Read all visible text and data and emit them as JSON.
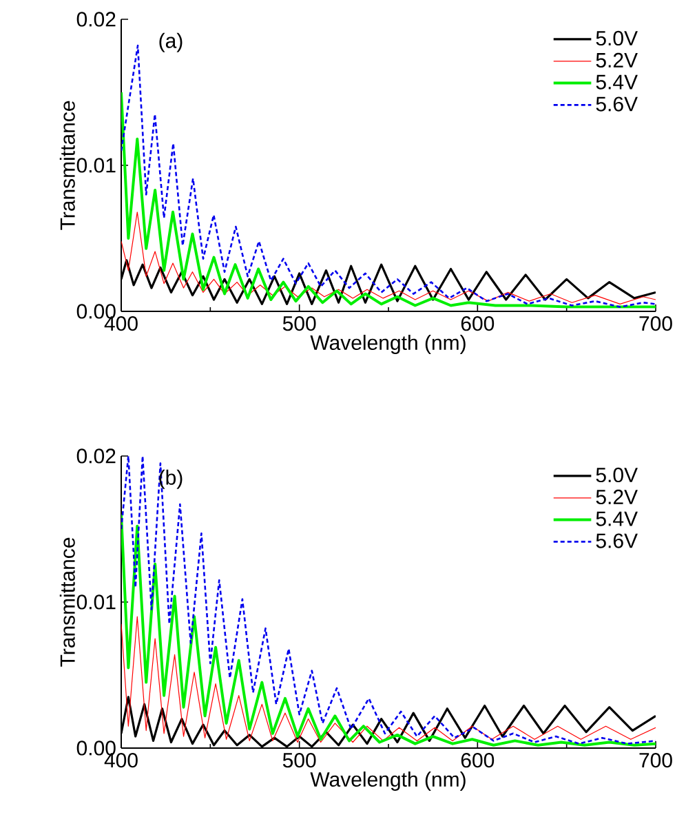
{
  "chart_data": [
    {
      "type": "line",
      "annotations": [
        "(a)"
      ],
      "xlabel": "Wavelength (nm)",
      "ylabel": "Transmittance",
      "xlim": [
        400,
        700
      ],
      "ylim": [
        0,
        0.02
      ],
      "xticks": [
        400,
        500,
        600,
        700
      ],
      "yticks": [
        {
          "value": 0,
          "label": "0.00"
        },
        {
          "value": 0.01,
          "label": "0.01"
        },
        {
          "value": 0.02,
          "label": "0.02"
        }
      ],
      "legend": "top right",
      "series": [
        {
          "name": "5.0V",
          "color": "#000000",
          "line_style": "solid",
          "x": [
            400,
            403,
            407,
            412,
            417,
            422,
            428,
            434,
            440,
            446,
            452,
            458,
            465,
            472,
            479,
            486,
            493,
            500,
            507,
            515,
            522,
            529,
            537,
            546,
            555,
            565,
            575,
            585,
            595,
            605,
            616,
            627,
            638,
            650,
            662,
            674,
            688,
            700
          ],
          "values": [
            0.0022,
            0.0035,
            0.0018,
            0.0032,
            0.0016,
            0.003,
            0.0013,
            0.0027,
            0.0011,
            0.0024,
            0.0008,
            0.0022,
            0.0006,
            0.0022,
            0.0005,
            0.0024,
            0.0005,
            0.0026,
            0.0005,
            0.0028,
            0.0006,
            0.0031,
            0.0006,
            0.0032,
            0.0007,
            0.0031,
            0.0008,
            0.0029,
            0.0008,
            0.0027,
            0.0008,
            0.0025,
            0.0008,
            0.0022,
            0.0009,
            0.002,
            0.0009,
            0.0013
          ]
        },
        {
          "name": "5.2V",
          "color": "#ff0000",
          "line_style": "solid",
          "x": [
            400,
            404,
            409,
            414,
            419,
            424,
            429,
            435,
            440,
            446,
            452,
            458,
            465,
            471,
            478,
            485,
            492,
            499,
            507,
            514,
            522,
            530,
            538,
            547,
            556,
            565,
            575,
            585,
            595,
            606,
            617,
            629,
            641,
            653,
            666,
            680,
            693,
            700
          ],
          "values": [
            0.0048,
            0.0028,
            0.0068,
            0.0024,
            0.0041,
            0.0019,
            0.0033,
            0.0016,
            0.0027,
            0.0013,
            0.0022,
            0.0012,
            0.002,
            0.0011,
            0.0018,
            0.0011,
            0.0017,
            0.001,
            0.0016,
            0.001,
            0.0015,
            0.0009,
            0.0015,
            0.0009,
            0.0014,
            0.0008,
            0.0014,
            0.0008,
            0.0014,
            0.0007,
            0.0013,
            0.0007,
            0.0012,
            0.0006,
            0.0011,
            0.0005,
            0.001,
            0.0008
          ]
        },
        {
          "name": "5.4V",
          "color": "#00ee00",
          "line_style": "solid",
          "x": [
            400,
            404,
            409,
            414,
            419,
            424,
            429,
            435,
            440,
            446,
            452,
            458,
            464,
            471,
            477,
            484,
            491,
            498,
            505,
            513,
            521,
            529,
            537,
            546,
            555,
            565,
            575,
            585,
            595,
            610,
            630,
            650,
            670,
            700
          ],
          "values": [
            0.015,
            0.005,
            0.0118,
            0.0043,
            0.0083,
            0.0028,
            0.0068,
            0.0022,
            0.0053,
            0.0015,
            0.0037,
            0.0012,
            0.0032,
            0.0009,
            0.0029,
            0.0008,
            0.002,
            0.0007,
            0.0017,
            0.0006,
            0.0014,
            0.0005,
            0.0012,
            0.0005,
            0.001,
            0.0004,
            0.0009,
            0.0004,
            0.0006,
            0.0004,
            0.0004,
            0.0003,
            0.0003,
            0.0003
          ]
        },
        {
          "name": "5.6V",
          "color": "#0000ee",
          "line_style": "dashed",
          "x": [
            400,
            409.3,
            414,
            418.9,
            424,
            429.2,
            434.5,
            440.3,
            446,
            451.9,
            458,
            464.3,
            471,
            477.3,
            484,
            491,
            498,
            505,
            512,
            520,
            528,
            537,
            546,
            555,
            564,
            574,
            584,
            594,
            605,
            617,
            628,
            640,
            653,
            666,
            680,
            693,
            700
          ],
          "values": [
            0.011,
            0.0182,
            0.008,
            0.0135,
            0.0064,
            0.0115,
            0.0045,
            0.0091,
            0.0036,
            0.0066,
            0.0027,
            0.0058,
            0.0024,
            0.0048,
            0.0021,
            0.0036,
            0.0019,
            0.0033,
            0.0017,
            0.0028,
            0.0016,
            0.0026,
            0.0013,
            0.0022,
            0.0012,
            0.002,
            0.0009,
            0.0016,
            0.0007,
            0.0012,
            0.0005,
            0.0009,
            0.0004,
            0.0007,
            0.0003,
            0.0006,
            0.0005
          ]
        }
      ]
    },
    {
      "type": "line",
      "annotations": [
        "(b)"
      ],
      "xlabel": "Wavelength (nm)",
      "ylabel": "Transmittance",
      "xlim": [
        400,
        700
      ],
      "ylim": [
        0,
        0.02
      ],
      "xticks": [
        400,
        500,
        600,
        700
      ],
      "yticks": [
        {
          "value": 0,
          "label": "0.00"
        },
        {
          "value": 0.01,
          "label": "0.01"
        },
        {
          "value": 0.02,
          "label": "0.02"
        }
      ],
      "legend": "top right",
      "series": [
        {
          "name": "5.0V",
          "color": "#000000",
          "line_style": "solid",
          "x": [
            400,
            404,
            408,
            413,
            418,
            423,
            428,
            434,
            440,
            446,
            452,
            458,
            465,
            472,
            479,
            486,
            493,
            500,
            507,
            515,
            522,
            530,
            538,
            546,
            555,
            564,
            573,
            583,
            593,
            604,
            614,
            626,
            637,
            649,
            661,
            674,
            687,
            700
          ],
          "values": [
            0.001,
            0.0035,
            0.0008,
            0.003,
            0.0005,
            0.0027,
            0.0004,
            0.002,
            0.0003,
            0.0016,
            0.0002,
            0.0012,
            0.0002,
            0.0009,
            0.0001,
            0.0007,
            0.0001,
            0.0008,
            0.0001,
            0.0011,
            0.0002,
            0.0016,
            0.0003,
            0.002,
            0.0004,
            0.0024,
            0.0005,
            0.0027,
            0.0007,
            0.0029,
            0.0008,
            0.0029,
            0.001,
            0.0029,
            0.0011,
            0.0028,
            0.0012,
            0.0022
          ]
        },
        {
          "name": "5.2V",
          "color": "#ff0000",
          "line_style": "solid",
          "x": [
            400,
            404,
            409,
            414,
            419,
            424,
            430,
            435,
            441,
            447,
            453,
            459,
            466,
            472,
            479,
            485,
            492,
            499,
            505,
            512,
            520,
            530,
            538,
            547,
            556,
            566,
            576,
            586,
            597,
            608,
            620,
            632,
            645,
            658,
            672,
            686,
            700
          ],
          "values": [
            0.0085,
            0.0015,
            0.009,
            0.0012,
            0.0075,
            0.001,
            0.0064,
            0.0008,
            0.0052,
            0.0007,
            0.0044,
            0.0006,
            0.0036,
            0.0005,
            0.003,
            0.0005,
            0.0024,
            0.0004,
            0.002,
            0.0004,
            0.0017,
            0.0004,
            0.0015,
            0.0005,
            0.0014,
            0.0005,
            0.0014,
            0.0005,
            0.0015,
            0.0006,
            0.0015,
            0.0006,
            0.0015,
            0.0006,
            0.0015,
            0.0006,
            0.0014
          ]
        },
        {
          "name": "5.4V",
          "color": "#00ee00",
          "line_style": "solid",
          "x": [
            400,
            404,
            409,
            414,
            419,
            424,
            430,
            435,
            441,
            447,
            453,
            459,
            466,
            472,
            479,
            485,
            492,
            499,
            505,
            512,
            520,
            528,
            536,
            545,
            555,
            565,
            575,
            586,
            597,
            609,
            621,
            634,
            647,
            660,
            674,
            688,
            700
          ],
          "values": [
            0.016,
            0.0055,
            0.0152,
            0.0045,
            0.0126,
            0.0036,
            0.0104,
            0.0028,
            0.009,
            0.0022,
            0.0069,
            0.0017,
            0.006,
            0.0013,
            0.0045,
            0.001,
            0.0034,
            0.0008,
            0.0027,
            0.0006,
            0.0022,
            0.0005,
            0.0015,
            0.0004,
            0.0009,
            0.0003,
            0.0008,
            0.0003,
            0.0006,
            0.0002,
            0.0005,
            0.0002,
            0.0004,
            0.0002,
            0.0004,
            0.0002,
            0.0003
          ]
        },
        {
          "name": "5.6V",
          "color": "#0000ee",
          "line_style": "dashed",
          "x": [
            400,
            404,
            408,
            412,
            417,
            422,
            427,
            433,
            439,
            445,
            450,
            455,
            461,
            468,
            474,
            481,
            487,
            494,
            500,
            507,
            513,
            521,
            529,
            539,
            548,
            557,
            566,
            576,
            587,
            598,
            609,
            620,
            632,
            644,
            657,
            670,
            684,
            700
          ],
          "values": [
            0.015,
            0.02,
            0.011,
            0.02,
            0.0095,
            0.0195,
            0.0085,
            0.0167,
            0.0072,
            0.0147,
            0.0058,
            0.0115,
            0.0048,
            0.0102,
            0.0038,
            0.0082,
            0.003,
            0.0068,
            0.0023,
            0.0053,
            0.0017,
            0.0041,
            0.0013,
            0.0034,
            0.001,
            0.0025,
            0.0008,
            0.0022,
            0.0007,
            0.0014,
            0.0005,
            0.001,
            0.0004,
            0.0008,
            0.0003,
            0.0007,
            0.0003,
            0.0005
          ]
        }
      ]
    }
  ]
}
